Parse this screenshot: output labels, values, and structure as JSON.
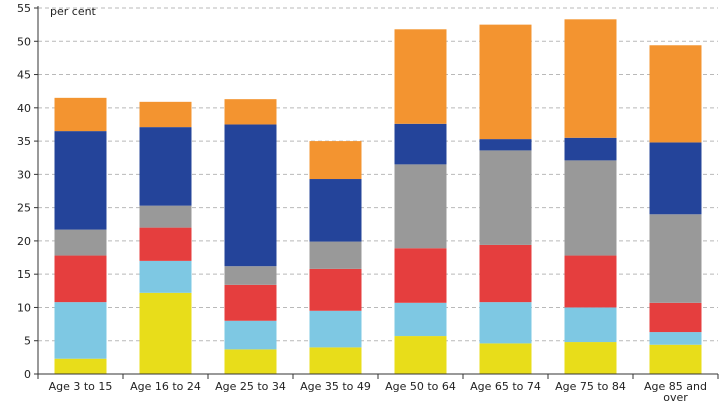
{
  "chart_data": {
    "type": "bar",
    "stacked": true,
    "title": "",
    "xlabel": "",
    "ylabel": "per cent",
    "ylim": [
      0,
      55
    ],
    "yticks": [
      0,
      5,
      10,
      15,
      20,
      25,
      30,
      35,
      40,
      45,
      50,
      55
    ],
    "grid": true,
    "categories": [
      [
        "Age 3 to 15"
      ],
      [
        "Age 16 to 24"
      ],
      [
        "Age 25 to 34"
      ],
      [
        "Age 35 to 49"
      ],
      [
        "Age 50 to 64"
      ],
      [
        "Age 65 to 74"
      ],
      [
        "Age 75 to 84"
      ],
      [
        "Age 85 and",
        "over"
      ]
    ],
    "series": [
      {
        "color": "#e8dd1a",
        "values": [
          2.3,
          12.2,
          3.7,
          4.0,
          5.7,
          4.6,
          4.8,
          4.4
        ]
      },
      {
        "color": "#7ec8e3",
        "values": [
          8.5,
          4.8,
          4.3,
          5.5,
          5.0,
          6.2,
          5.2,
          1.9
        ]
      },
      {
        "color": "#e53e3e",
        "values": [
          7.0,
          5.0,
          5.4,
          6.3,
          8.2,
          8.6,
          7.8,
          4.4
        ]
      },
      {
        "color": "#999999",
        "values": [
          3.9,
          3.3,
          2.8,
          4.1,
          12.6,
          14.2,
          14.3,
          13.3
        ]
      },
      {
        "color": "#24449a",
        "values": [
          14.8,
          11.8,
          21.3,
          9.4,
          6.1,
          1.7,
          3.4,
          10.8
        ]
      },
      {
        "color": "#f39430",
        "values": [
          5.0,
          3.8,
          3.8,
          5.7,
          14.2,
          17.2,
          17.8,
          14.6
        ]
      }
    ]
  }
}
